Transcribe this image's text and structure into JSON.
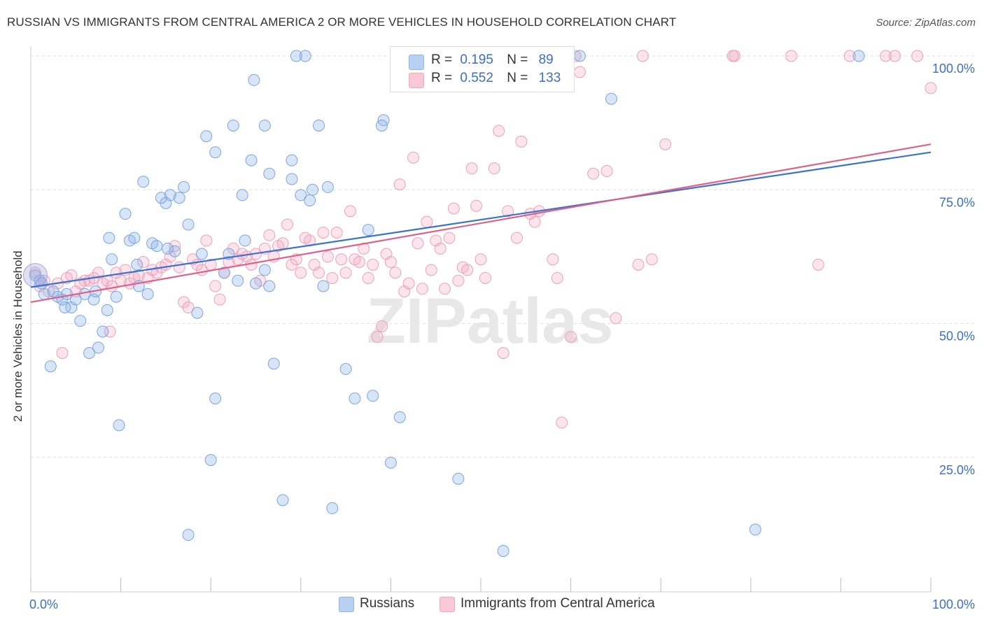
{
  "title": "RUSSIAN VS IMMIGRANTS FROM CENTRAL AMERICA 2 OR MORE VEHICLES IN HOUSEHOLD CORRELATION CHART",
  "source": "Source: ZipAtlas.com",
  "watermark": "ZIPatlas",
  "legend": {
    "series1": {
      "r_label": "R =",
      "r_value": "0.195",
      "n_label": "N =",
      "n_value": "89"
    },
    "series2": {
      "r_label": "R =",
      "r_value": "0.552",
      "n_label": "N =",
      "n_value": "133"
    }
  },
  "bottom_legend": {
    "series1": "Russians",
    "series2": "Immigrants from Central America"
  },
  "colors": {
    "blue": "#8fb4e8",
    "blue_line": "#3a72cc",
    "pink": "#f2a7bf",
    "pink_line": "#e0608a",
    "axis_text": "#3a6fc9"
  },
  "chart_data": {
    "type": "scatter",
    "title": "RUSSIAN VS IMMIGRANTS FROM CENTRAL AMERICA 2 OR MORE VEHICLES IN HOUSEHOLD CORRELATION CHART",
    "xlabel": "",
    "ylabel": "2 or more Vehicles in Household",
    "x_tick_labels": [
      "0.0%",
      "100.0%"
    ],
    "y_tick_labels": [
      "25.0%",
      "50.0%",
      "75.0%",
      "100.0%"
    ],
    "xlim": [
      0,
      100
    ],
    "ylim": [
      0,
      102
    ],
    "grid": true,
    "series": [
      {
        "name": "Russians",
        "r": 0.195,
        "n": 89,
        "trend": {
          "x": [
            0,
            100
          ],
          "y": [
            56.8,
            82.0
          ]
        },
        "points": [
          [
            0.5,
            59
          ],
          [
            1.0,
            58
          ],
          [
            1.5,
            55.5
          ],
          [
            2.2,
            42
          ],
          [
            2.5,
            56
          ],
          [
            3.0,
            55
          ],
          [
            3.5,
            54.5
          ],
          [
            4.0,
            55.5
          ],
          [
            4.5,
            53
          ],
          [
            5.0,
            54.5
          ],
          [
            5.5,
            50.5
          ],
          [
            6.0,
            55.5
          ],
          [
            6.5,
            44.5
          ],
          [
            7.0,
            54.5
          ],
          [
            7.5,
            45.5
          ],
          [
            8.0,
            48.5
          ],
          [
            8.5,
            52.5
          ],
          [
            8.7,
            66
          ],
          [
            9.0,
            62
          ],
          [
            9.5,
            55
          ],
          [
            9.8,
            31
          ],
          [
            10.5,
            70.5
          ],
          [
            11.0,
            65.5
          ],
          [
            11.5,
            66
          ],
          [
            11.8,
            61
          ],
          [
            12.0,
            57
          ],
          [
            12.5,
            76.5
          ],
          [
            13.0,
            55.5
          ],
          [
            13.5,
            65
          ],
          [
            14.0,
            64.5
          ],
          [
            14.5,
            73.5
          ],
          [
            15.0,
            72.5
          ],
          [
            15.5,
            74
          ],
          [
            16.0,
            63.5
          ],
          [
            16.5,
            73.5
          ],
          [
            17.0,
            75.5
          ],
          [
            17.5,
            68.5
          ],
          [
            17.5,
            10.5
          ],
          [
            18.5,
            52
          ],
          [
            19.0,
            63
          ],
          [
            19.5,
            85
          ],
          [
            20.0,
            24.5
          ],
          [
            20.5,
            82
          ],
          [
            20.5,
            36
          ],
          [
            21.5,
            59.5
          ],
          [
            22.0,
            63
          ],
          [
            22.5,
            87
          ],
          [
            23.0,
            58
          ],
          [
            23.5,
            74
          ],
          [
            23.8,
            65.5
          ],
          [
            24.5,
            80.5
          ],
          [
            24.8,
            95.5
          ],
          [
            25.0,
            57.5
          ],
          [
            26.0,
            87
          ],
          [
            26.5,
            57
          ],
          [
            26.5,
            78
          ],
          [
            27.0,
            42.5
          ],
          [
            28.0,
            17
          ],
          [
            29.0,
            77
          ],
          [
            29.0,
            80.5
          ],
          [
            29.5,
            100
          ],
          [
            30.0,
            74
          ],
          [
            30.5,
            100
          ],
          [
            31.0,
            73
          ],
          [
            31.3,
            75
          ],
          [
            32.0,
            87
          ],
          [
            32.5,
            57
          ],
          [
            33.0,
            75.5
          ],
          [
            33.5,
            15.5
          ],
          [
            35.0,
            41.5
          ],
          [
            36.0,
            36
          ],
          [
            37.5,
            67.5
          ],
          [
            38.0,
            36.5
          ],
          [
            39.0,
            87
          ],
          [
            39.2,
            88
          ],
          [
            40.0,
            24
          ],
          [
            41.0,
            32.5
          ],
          [
            47.5,
            21
          ],
          [
            50.0,
            100
          ],
          [
            52.5,
            7.5
          ],
          [
            61.0,
            100
          ],
          [
            64.5,
            92
          ],
          [
            80.5,
            11.5
          ],
          [
            92.0,
            100
          ],
          [
            1.2,
            57.5
          ],
          [
            3.8,
            53
          ],
          [
            7.2,
            56
          ],
          [
            15.2,
            64
          ],
          [
            26.0,
            60
          ]
        ]
      },
      {
        "name": "Immigrants from Central America",
        "r": 0.552,
        "n": 133,
        "trend": {
          "x": [
            0,
            100
          ],
          "y": [
            54.0,
            83.5
          ]
        },
        "points": [
          [
            0.5,
            59.5
          ],
          [
            1.0,
            57
          ],
          [
            1.5,
            58
          ],
          [
            2.0,
            56
          ],
          [
            3.0,
            57.5
          ],
          [
            3.5,
            44.5
          ],
          [
            4.0,
            58.5
          ],
          [
            4.5,
            59
          ],
          [
            5.0,
            56
          ],
          [
            5.5,
            57.5
          ],
          [
            6.0,
            58
          ],
          [
            6.5,
            58
          ],
          [
            7.0,
            58.5
          ],
          [
            7.5,
            59.5
          ],
          [
            8.0,
            57.5
          ],
          [
            8.5,
            58
          ],
          [
            8.8,
            48.5
          ],
          [
            9.0,
            57
          ],
          [
            9.5,
            59.5
          ],
          [
            10.0,
            58
          ],
          [
            10.5,
            60
          ],
          [
            11.0,
            57.5
          ],
          [
            11.5,
            58.5
          ],
          [
            12.0,
            59
          ],
          [
            12.5,
            61.5
          ],
          [
            13.0,
            58.5
          ],
          [
            13.5,
            60
          ],
          [
            14.0,
            59.5
          ],
          [
            14.5,
            60.5
          ],
          [
            15.0,
            61
          ],
          [
            15.5,
            62.5
          ],
          [
            16.0,
            64.5
          ],
          [
            16.5,
            60.5
          ],
          [
            17.0,
            54
          ],
          [
            17.5,
            53
          ],
          [
            18.0,
            62
          ],
          [
            18.5,
            61
          ],
          [
            19.0,
            60
          ],
          [
            19.5,
            65.5
          ],
          [
            20.0,
            61
          ],
          [
            20.5,
            57
          ],
          [
            21.0,
            54.5
          ],
          [
            21.5,
            59.5
          ],
          [
            22.0,
            61.5
          ],
          [
            22.5,
            64
          ],
          [
            23.0,
            62
          ],
          [
            23.5,
            63
          ],
          [
            24.0,
            62.5
          ],
          [
            24.5,
            61
          ],
          [
            25.0,
            63
          ],
          [
            25.5,
            58
          ],
          [
            26.0,
            64
          ],
          [
            26.5,
            66.5
          ],
          [
            27.0,
            62.5
          ],
          [
            27.5,
            64.5
          ],
          [
            28.0,
            65
          ],
          [
            28.5,
            68.5
          ],
          [
            29.0,
            61
          ],
          [
            29.5,
            62
          ],
          [
            30.0,
            59.5
          ],
          [
            30.5,
            66
          ],
          [
            31.0,
            65.5
          ],
          [
            31.5,
            61
          ],
          [
            32.0,
            59.5
          ],
          [
            32.5,
            67
          ],
          [
            33.0,
            62.5
          ],
          [
            33.5,
            58.5
          ],
          [
            34.0,
            67
          ],
          [
            34.5,
            62
          ],
          [
            35.0,
            59.5
          ],
          [
            35.5,
            71
          ],
          [
            36.0,
            62
          ],
          [
            36.5,
            61.5
          ],
          [
            37.0,
            64
          ],
          [
            37.5,
            58.5
          ],
          [
            38.0,
            61
          ],
          [
            38.5,
            47.5
          ],
          [
            39.0,
            49.5
          ],
          [
            39.5,
            63
          ],
          [
            40.0,
            61.5
          ],
          [
            40.5,
            59.5
          ],
          [
            41.0,
            76
          ],
          [
            41.5,
            56
          ],
          [
            42.0,
            57.5
          ],
          [
            42.5,
            81
          ],
          [
            43.0,
            65
          ],
          [
            43.5,
            56.5
          ],
          [
            44.0,
            69
          ],
          [
            44.5,
            60
          ],
          [
            45.0,
            65.5
          ],
          [
            45.5,
            64
          ],
          [
            46.0,
            56.5
          ],
          [
            46.5,
            66
          ],
          [
            47.0,
            71.5
          ],
          [
            47.5,
            58
          ],
          [
            48.0,
            60.5
          ],
          [
            48.5,
            60
          ],
          [
            49.0,
            79
          ],
          [
            49.5,
            72
          ],
          [
            50.0,
            62
          ],
          [
            50.5,
            58.5
          ],
          [
            51.0,
            100
          ],
          [
            51.5,
            79
          ],
          [
            52.0,
            86
          ],
          [
            52.5,
            44.5
          ],
          [
            53.0,
            71
          ],
          [
            54.0,
            66
          ],
          [
            54.5,
            84
          ],
          [
            55.5,
            70.5
          ],
          [
            56.0,
            69
          ],
          [
            56.5,
            71
          ],
          [
            58.0,
            62
          ],
          [
            58.5,
            58.5
          ],
          [
            59.0,
            31.5
          ],
          [
            60.0,
            47.5
          ],
          [
            60.5,
            100
          ],
          [
            61.0,
            97
          ],
          [
            62.5,
            78
          ],
          [
            64.0,
            78.5
          ],
          [
            65.0,
            51
          ],
          [
            67.5,
            61
          ],
          [
            68.0,
            100
          ],
          [
            69.0,
            62
          ],
          [
            70.5,
            83.5
          ],
          [
            78.0,
            100
          ],
          [
            78.2,
            100
          ],
          [
            84.5,
            100
          ],
          [
            87.5,
            61
          ],
          [
            91.0,
            100
          ],
          [
            95.0,
            100
          ],
          [
            96.0,
            100
          ],
          [
            98.5,
            100
          ],
          [
            100.0,
            94
          ]
        ]
      }
    ]
  }
}
